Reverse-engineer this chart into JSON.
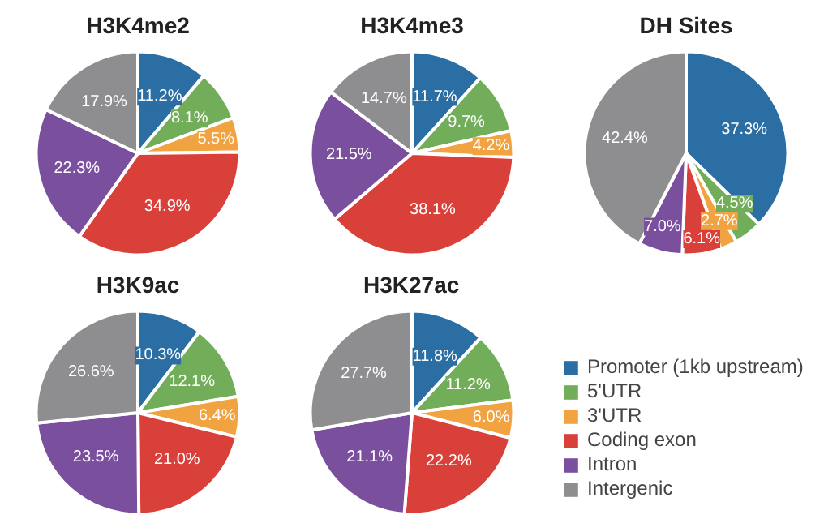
{
  "chart_data": [
    {
      "type": "pie",
      "title": "H3K4me2",
      "categories": [
        "Promoter (1kb upstream)",
        "5'UTR",
        "3'UTR",
        "Coding exon",
        "Intron",
        "Intergenic"
      ],
      "values": [
        11.2,
        8.1,
        5.5,
        34.9,
        22.3,
        17.9
      ],
      "colors": [
        "#2b6ea3",
        "#72ad5a",
        "#f0a340",
        "#d9403a",
        "#7a4f9e",
        "#8e8e90"
      ],
      "value_labels": [
        "11.2%",
        "8.1%",
        "5.5%",
        "34.9%",
        "22.3%",
        "17.9%"
      ],
      "legend": "bottom right"
    },
    {
      "type": "pie",
      "title": "H3K4me3",
      "categories": [
        null,
        null,
        null,
        null,
        null,
        null
      ],
      "values": [
        11.7,
        9.7,
        4.2,
        38.1,
        21.5,
        14.7
      ],
      "colors": [
        "#2b6ea3",
        "#72ad5a",
        "#f0a340",
        "#d9403a",
        "#7a4f9e",
        "#8e8e90"
      ],
      "value_labels": [
        "11.7%",
        "9.7%",
        "4.2%",
        "38.1%",
        "21.5%",
        "14.7%"
      ]
    },
    {
      "type": "pie",
      "title": "DH Sites",
      "categories": [
        null,
        null,
        null,
        null,
        null,
        null
      ],
      "values": [
        37.3,
        4.5,
        2.7,
        6.1,
        7.0,
        42.4
      ],
      "colors": [
        "#2b6ea3",
        "#72ad5a",
        "#f0a340",
        "#d9403a",
        "#7a4f9e",
        "#8e8e90"
      ],
      "value_labels": [
        "37.3%",
        "4.5%",
        "2.7%",
        "6.1%",
        "7.0%",
        "42.4%"
      ]
    },
    {
      "type": "pie",
      "title": "H3K9ac",
      "categories": [
        null,
        null,
        null,
        null,
        null,
        null
      ],
      "values": [
        10.3,
        12.1,
        6.4,
        21.0,
        23.5,
        26.6
      ],
      "colors": [
        "#2b6ea3",
        "#72ad5a",
        "#f0a340",
        "#d9403a",
        "#7a4f9e",
        "#8e8e90"
      ],
      "value_labels": [
        "10.3%",
        "12.1%",
        "6.4%",
        "21.0%",
        "23.5%",
        "26.6%"
      ]
    },
    {
      "type": "pie",
      "title": "H3K27ac",
      "categories": [
        null,
        null,
        null,
        null,
        null,
        null
      ],
      "values": [
        11.8,
        11.2,
        6.0,
        22.2,
        21.1,
        27.7
      ],
      "colors": [
        "#2b6ea3",
        "#72ad5a",
        "#f0a340",
        "#d9403a",
        "#7a4f9e",
        "#8e8e90"
      ],
      "value_labels": [
        "11.8%",
        "11.2%",
        "6.0%",
        "22.2%",
        "21.1%",
        "27.7%"
      ]
    }
  ]
}
